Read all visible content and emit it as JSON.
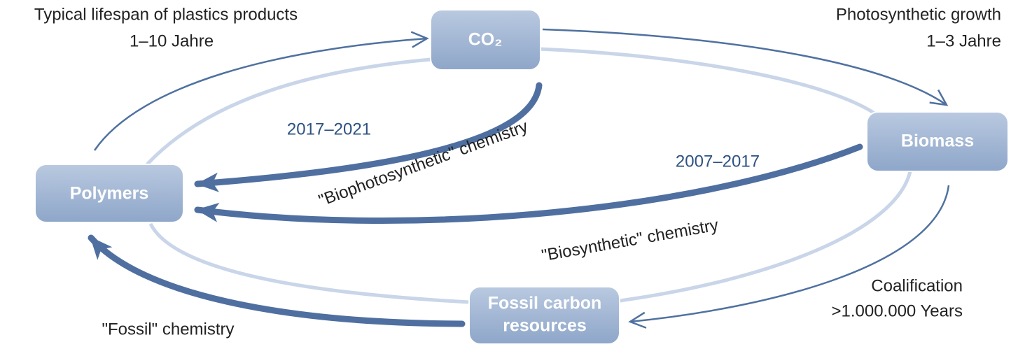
{
  "nodes": [
    {
      "label": "CO₂"
    },
    {
      "label": "Biomass"
    },
    {
      "label": "Polymers"
    },
    {
      "label": "Fossil carbon"
    },
    {
      "label": "resources"
    }
  ],
  "labels": {
    "lifespan": "Typical lifespan of plastics products",
    "lifespan_time": "1–10 Jahre",
    "photo": "Photosynthetic growth",
    "photo_time": "1–3 Jahre",
    "years_biophoto": "2017–2021",
    "biophoto": "\"Biophotosynthetic\" chemistry",
    "years_bio": "2007–2017",
    "bio": "\"Biosynthetic\" chemistry",
    "coal": "Coalification",
    "coal_time": ">1.000.000 Years",
    "fossil": "\"Fossil\" chemistry"
  }
}
